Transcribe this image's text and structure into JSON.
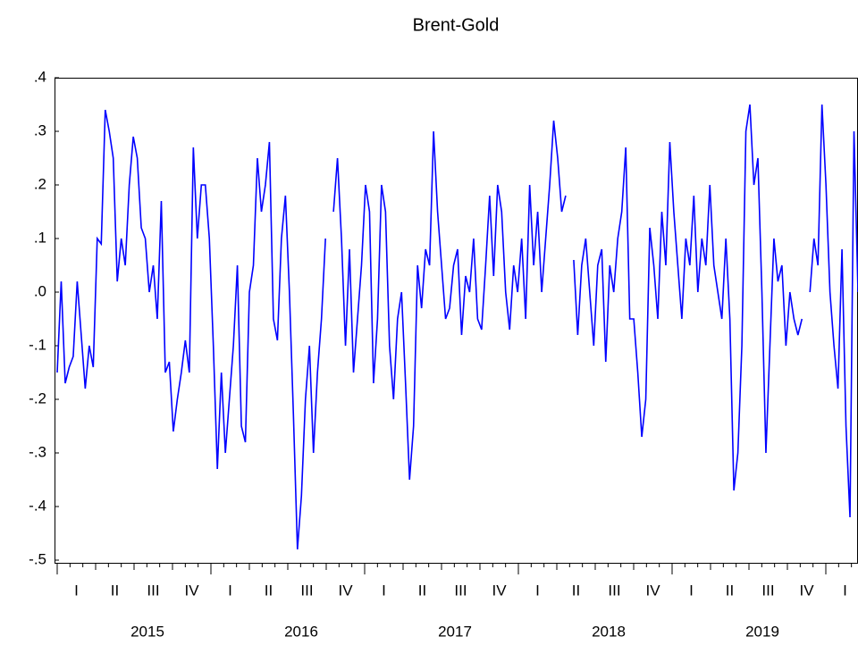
{
  "chart_data": {
    "type": "line",
    "title": "Brent-Gold",
    "series": [
      {
        "name": "Brent-Gold",
        "color": "#0000ff",
        "values": [
          -0.15,
          0.02,
          -0.17,
          -0.14,
          -0.12,
          0.02,
          -0.08,
          -0.18,
          -0.1,
          -0.14,
          0.1,
          0.09,
          0.34,
          0.3,
          0.25,
          0.02,
          0.1,
          0.05,
          0.2,
          0.29,
          0.25,
          0.12,
          0.1,
          0.0,
          0.05,
          -0.05,
          0.17,
          -0.15,
          -0.13,
          -0.26,
          -0.2,
          -0.15,
          -0.09,
          -0.15,
          0.27,
          0.1,
          0.2,
          0.2,
          0.1,
          -0.1,
          -0.33,
          -0.15,
          -0.3,
          -0.2,
          -0.1,
          0.05,
          -0.25,
          -0.28,
          0.0,
          0.05,
          0.25,
          0.15,
          0.2,
          0.28,
          -0.05,
          -0.09,
          0.1,
          0.18,
          0.0,
          -0.23,
          -0.48,
          -0.38,
          -0.2,
          -0.1,
          -0.3,
          -0.15,
          -0.05,
          0.1,
          null,
          0.15,
          0.25,
          0.1,
          -0.1,
          0.08,
          -0.15,
          -0.05,
          0.05,
          0.2,
          0.15,
          -0.17,
          -0.05,
          0.2,
          0.15,
          -0.1,
          -0.2,
          -0.05,
          0.0,
          -0.17,
          -0.35,
          -0.25,
          0.05,
          -0.03,
          0.08,
          0.05,
          0.3,
          0.15,
          0.05,
          -0.05,
          -0.03,
          0.05,
          0.08,
          -0.08,
          0.03,
          0.0,
          0.1,
          -0.05,
          -0.07,
          0.05,
          0.18,
          0.03,
          0.2,
          0.15,
          0.0,
          -0.07,
          0.05,
          0.0,
          0.1,
          -0.05,
          0.2,
          0.05,
          0.15,
          0.0,
          0.1,
          0.2,
          0.32,
          0.25,
          0.15,
          0.18,
          null,
          0.06,
          -0.08,
          0.05,
          0.1,
          0.0,
          -0.1,
          0.05,
          0.08,
          -0.13,
          0.05,
          0.0,
          0.1,
          0.15,
          0.27,
          -0.05,
          -0.05,
          -0.15,
          -0.27,
          -0.2,
          0.12,
          0.05,
          -0.05,
          0.15,
          0.05,
          0.28,
          0.15,
          0.05,
          -0.05,
          0.1,
          0.05,
          0.18,
          0.0,
          0.1,
          0.05,
          0.2,
          0.05,
          0.0,
          -0.05,
          0.1,
          -0.05,
          -0.37,
          -0.3,
          -0.1,
          0.3,
          0.35,
          0.2,
          0.25,
          0.0,
          -0.3,
          -0.1,
          0.1,
          0.02,
          0.05,
          -0.1,
          0.0,
          -0.05,
          -0.08,
          -0.05,
          null,
          0.0,
          0.1,
          0.05,
          0.35,
          0.2,
          0.0,
          -0.1,
          -0.18,
          0.08,
          -0.25,
          -0.42,
          0.3,
          0.0
        ]
      }
    ],
    "x_axis": {
      "quarters": [
        "I",
        "II",
        "III",
        "IV",
        "I",
        "II",
        "III",
        "IV",
        "I",
        "II",
        "III",
        "IV",
        "I",
        "II",
        "III",
        "IV",
        "I",
        "II",
        "III",
        "IV",
        "I"
      ],
      "years": [
        "2015",
        "2016",
        "2017",
        "2018",
        "2019"
      ]
    },
    "ylim": [
      -0.5,
      0.4
    ],
    "yticks": [
      {
        "value": 0.4,
        "label": ".4"
      },
      {
        "value": 0.3,
        "label": ".3"
      },
      {
        "value": 0.2,
        "label": ".2"
      },
      {
        "value": 0.1,
        "label": ".1"
      },
      {
        "value": 0,
        "label": ".0"
      },
      {
        "value": -0.1,
        "label": "-.1"
      },
      {
        "value": -0.2,
        "label": "-.2"
      },
      {
        "value": -0.3,
        "label": "-.3"
      },
      {
        "value": -0.4,
        "label": "-.4"
      },
      {
        "value": -0.5,
        "label": "-.5"
      }
    ]
  }
}
